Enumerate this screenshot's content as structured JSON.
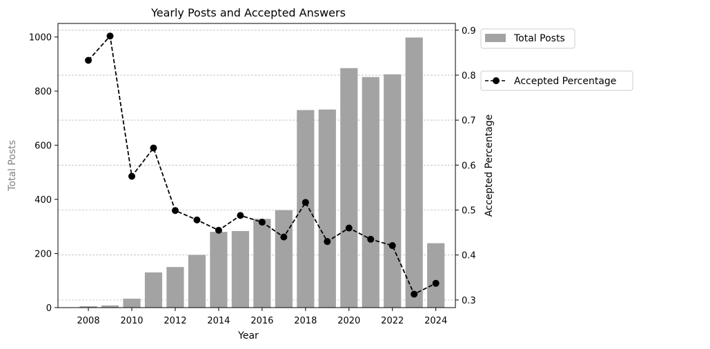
{
  "chart_data": {
    "type": "bar",
    "title": "Yearly Posts and Accepted Answers",
    "xlabel": "Year",
    "ylabel_left": "Total Posts",
    "ylabel_right": "Accepted Percentage",
    "x_ticks": [
      "2008",
      "2010",
      "2012",
      "2014",
      "2016",
      "2018",
      "2020",
      "2022",
      "2024"
    ],
    "y_left_ticks": [
      "0",
      "200",
      "400",
      "600",
      "800",
      "1000"
    ],
    "y_right_ticks": [
      "0.3",
      "0.4",
      "0.5",
      "0.6",
      "0.7",
      "0.8",
      "0.9"
    ],
    "xlim": [
      2006.6,
      2024.9
    ],
    "ylim_left": [
      0,
      1050
    ],
    "ylim_right": [
      0.283,
      0.915
    ],
    "grid": "horizontal-dashed (right axis)",
    "legend_placement": "outside-right",
    "colors": {
      "bar": "#a3a3a3",
      "line": "#000000",
      "grid": "#b0b0b0",
      "left_label": "#808080"
    },
    "categories": [
      "2008",
      "2009",
      "2010",
      "2011",
      "2012",
      "2013",
      "2014",
      "2015",
      "2016",
      "2017",
      "2018",
      "2019",
      "2020",
      "2021",
      "2022",
      "2023",
      "2024"
    ],
    "series": [
      {
        "name": "Total Posts",
        "type": "bar",
        "axis": "left",
        "values": [
          5,
          8,
          33,
          130,
          150,
          195,
          280,
          283,
          328,
          360,
          730,
          732,
          885,
          852,
          862,
          998,
          238
        ]
      },
      {
        "name": "Accepted Percentage",
        "type": "line",
        "axis": "right",
        "style": "dashed-with-circle-markers",
        "values": [
          0.833,
          0.887,
          0.575,
          0.638,
          0.499,
          0.478,
          0.455,
          0.488,
          0.473,
          0.44,
          0.517,
          0.43,
          0.46,
          0.435,
          0.421,
          0.313,
          0.337
        ]
      }
    ]
  }
}
